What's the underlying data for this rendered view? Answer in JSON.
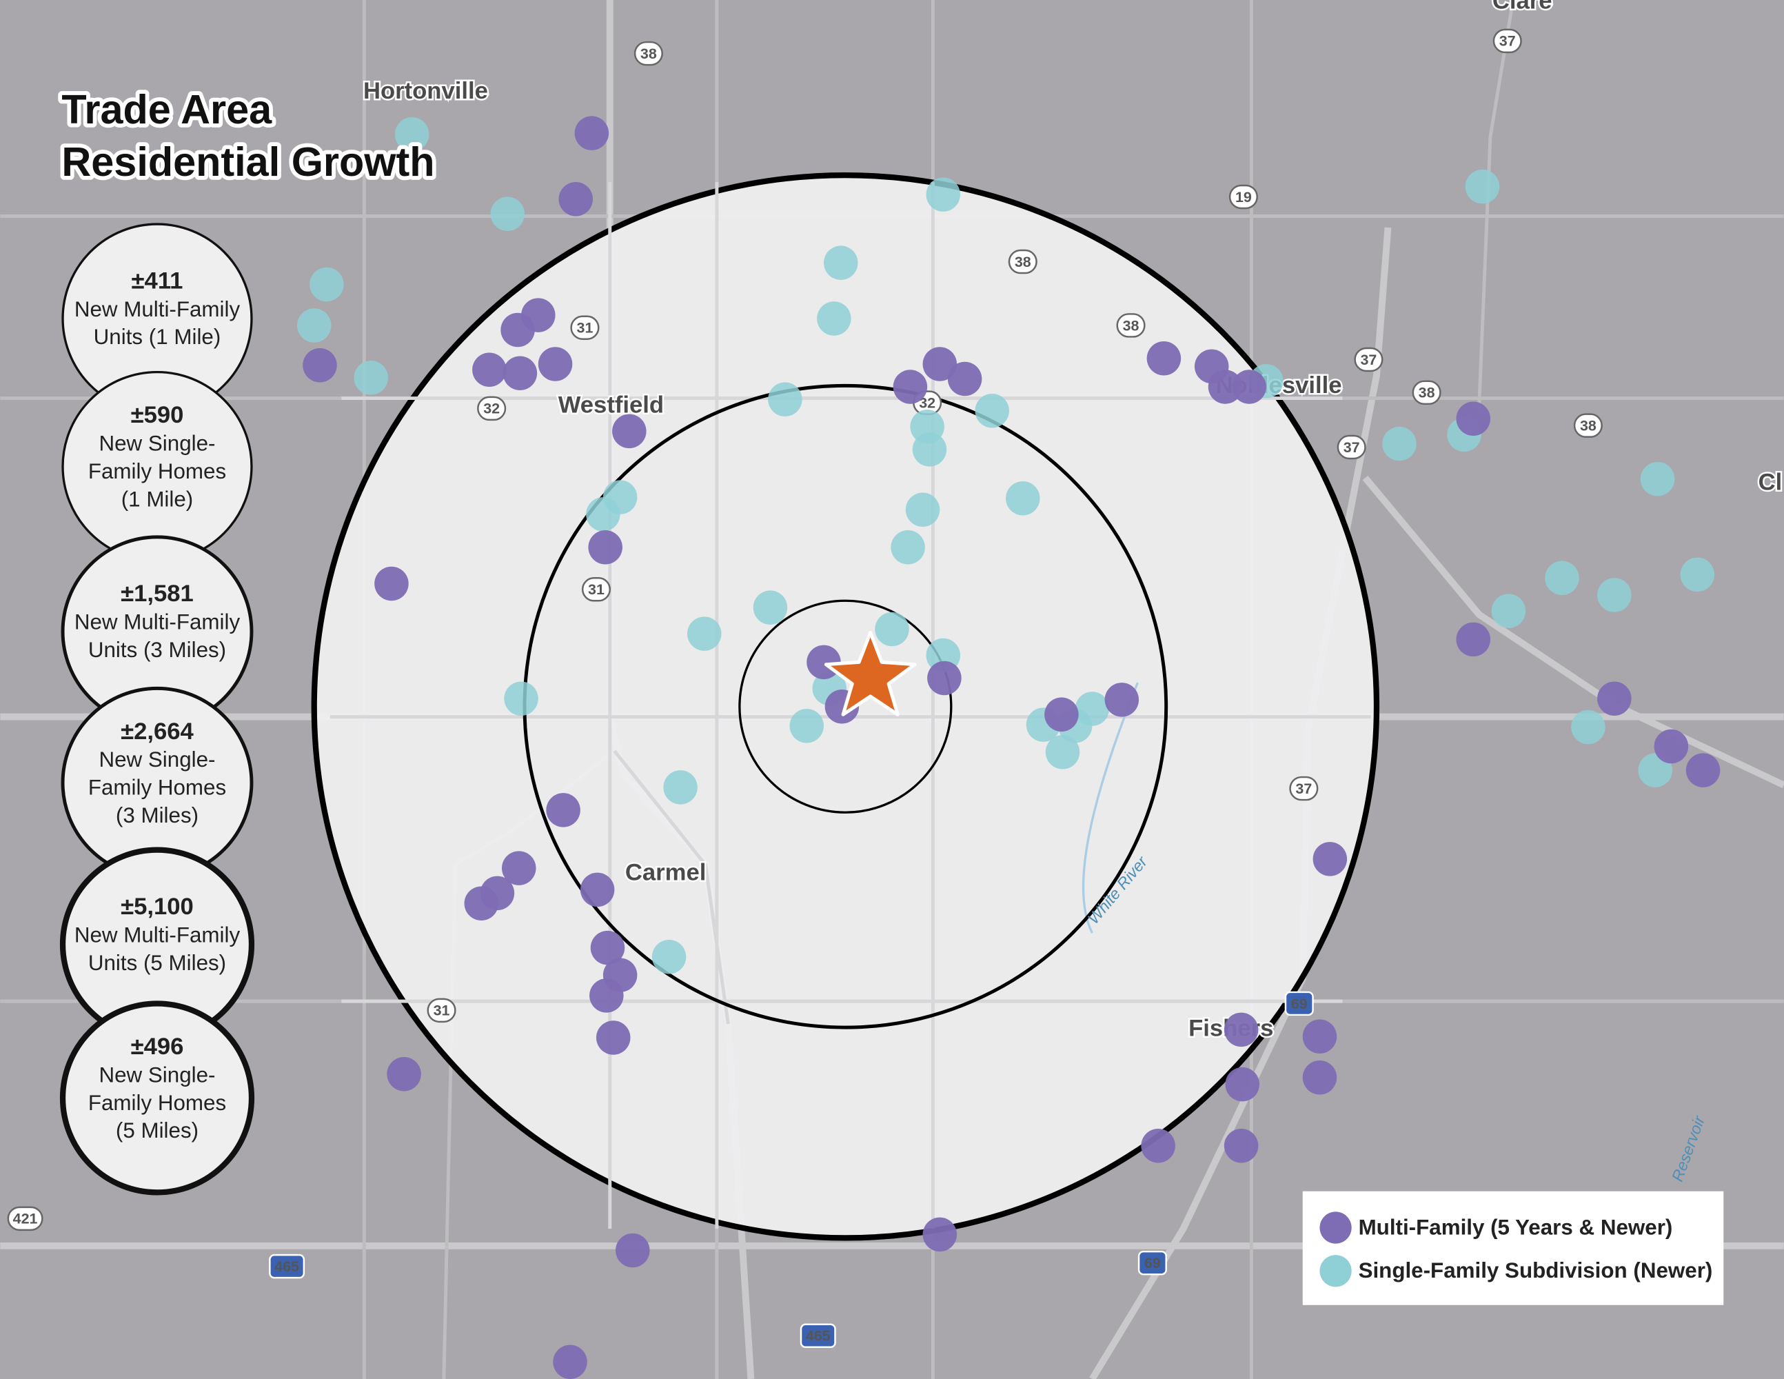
{
  "title": [
    "Trade Area",
    "Residential Growth"
  ],
  "stats": [
    {
      "value": "±411",
      "label": [
        "New Multi-Family",
        "Units (1 Mile)"
      ]
    },
    {
      "value": "±590",
      "label": [
        "New Single-",
        "Family Homes",
        "(1 Mile)"
      ]
    },
    {
      "value": "±1,581",
      "label": [
        "New Multi-Family",
        "Units (3 Miles)"
      ]
    },
    {
      "value": "±2,664",
      "label": [
        "New Single-",
        "Family Homes",
        "(3 Miles)"
      ]
    },
    {
      "value": "±5,100",
      "label": [
        "New Multi-Family",
        "Units (5 Miles)"
      ]
    },
    {
      "value": "±496",
      "label": [
        "New Single-",
        "Family Homes",
        "(5 Miles)"
      ]
    }
  ],
  "places": [
    "Hortonville",
    "Westfield",
    "Carmel",
    "Noblesville",
    "Fishers",
    "Clare",
    "Cl"
  ],
  "water_labels": [
    "White River",
    "Reservoir"
  ],
  "road_shields": [
    "38",
    "37",
    "19",
    "38",
    "38",
    "31",
    "32",
    "32",
    "37",
    "38",
    "37",
    "38",
    "31",
    "37",
    "31",
    "421",
    "465",
    "465",
    "69",
    "69"
  ],
  "legend": [
    {
      "label": "Multi-Family (5 Years & Newer)",
      "color": "#7e6cb4"
    },
    {
      "label": "Single-Family Subdivision (Newer)",
      "color": "#8fd0d6"
    }
  ]
}
